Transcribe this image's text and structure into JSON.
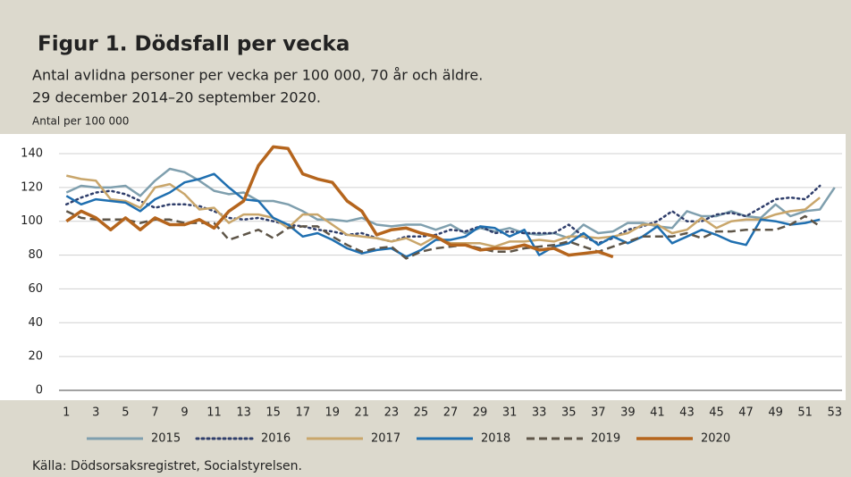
{
  "chart_data": {
    "type": "line",
    "title": "Figur 1. Dödsfall per vecka",
    "subtitle": [
      "Antal avlidna personer per vecka per 100 000, 70 år och äldre.",
      "29 december 2014–20 september 2020."
    ],
    "y_label": "Antal per 100 000",
    "source": "Källa: Dödsorsaksregistret, Socialstyrelsen.",
    "categories": [
      1,
      null,
      3,
      null,
      5,
      null,
      7,
      null,
      9,
      null,
      11,
      null,
      13,
      null,
      15,
      null,
      17,
      null,
      19,
      null,
      21,
      null,
      23,
      null,
      25,
      null,
      27,
      null,
      29,
      null,
      31,
      null,
      33,
      null,
      35,
      null,
      37,
      null,
      39,
      null,
      41,
      null,
      43,
      null,
      45,
      null,
      47,
      null,
      49,
      null,
      51,
      null,
      53
    ],
    "ylim": [
      0,
      140
    ],
    "yticks": [
      0,
      20,
      40,
      60,
      80,
      100,
      120,
      140
    ],
    "grid": true,
    "legend": "bottom",
    "series": [
      {
        "name": "2015",
        "color": "#7f9fae",
        "style": "solid",
        "values": [
          117,
          121,
          120,
          120,
          121,
          115,
          124,
          131,
          129,
          124,
          118,
          116,
          117,
          112,
          112,
          110,
          106,
          101,
          101,
          100,
          102,
          98,
          97,
          98,
          98,
          95,
          98,
          93,
          96,
          94,
          96,
          93,
          92,
          93,
          90,
          98,
          93,
          94,
          99,
          99,
          97,
          96,
          106,
          103,
          103,
          106,
          103,
          102,
          110,
          103,
          106,
          107,
          120
        ]
      },
      {
        "name": "2016",
        "color": "#2f3e6b",
        "style": "dotted",
        "values": [
          110,
          114,
          117,
          118,
          116,
          112,
          108,
          110,
          110,
          109,
          106,
          102,
          101,
          102,
          100,
          98,
          97,
          95,
          94,
          92,
          93,
          90,
          88,
          91,
          91,
          92,
          95,
          94,
          97,
          93,
          94,
          93,
          93,
          93,
          98,
          91,
          87,
          90,
          95,
          97,
          100,
          106,
          100,
          100,
          104,
          105,
          103,
          108,
          113,
          114,
          113,
          121,
          null
        ]
      },
      {
        "name": "2017",
        "color": "#c9a66b",
        "style": "solid",
        "values": [
          127,
          125,
          124,
          113,
          112,
          108,
          120,
          122,
          116,
          107,
          108,
          99,
          104,
          104,
          102,
          96,
          104,
          104,
          98,
          92,
          91,
          90,
          88,
          90,
          86,
          91,
          87,
          87,
          87,
          85,
          88,
          88,
          89,
          88,
          91,
          91,
          90,
          91,
          93,
          98,
          98,
          93,
          95,
          102,
          96,
          100,
          101,
          101,
          104,
          106,
          107,
          114,
          null
        ]
      },
      {
        "name": "2018",
        "color": "#1f6fb0",
        "style": "solid",
        "values": [
          115,
          110,
          113,
          112,
          111,
          106,
          113,
          117,
          123,
          125,
          128,
          120,
          113,
          112,
          102,
          98,
          91,
          93,
          89,
          84,
          81,
          83,
          84,
          79,
          83,
          89,
          89,
          91,
          97,
          96,
          91,
          95,
          80,
          85,
          87,
          93,
          86,
          91,
          87,
          91,
          97,
          87,
          91,
          95,
          92,
          88,
          86,
          101,
          100,
          98,
          99,
          101,
          null
        ]
      },
      {
        "name": "2019",
        "color": "#5e5548",
        "style": "dashed",
        "values": [
          106,
          102,
          101,
          101,
          101,
          99,
          101,
          101,
          99,
          99,
          99,
          89,
          92,
          95,
          90,
          96,
          97,
          97,
          91,
          86,
          82,
          84,
          85,
          78,
          82,
          84,
          85,
          86,
          84,
          82,
          82,
          84,
          85,
          86,
          88,
          85,
          82,
          85,
          88,
          91,
          91,
          91,
          93,
          90,
          94,
          94,
          95,
          95,
          95,
          98,
          103,
          97,
          null
        ]
      },
      {
        "name": "2020",
        "color": "#b5651d",
        "style": "solid",
        "width": 3.5,
        "values": [
          100,
          106,
          102,
          95,
          102,
          95,
          102,
          98,
          98,
          101,
          96,
          106,
          112,
          133,
          144,
          143,
          128,
          125,
          123,
          112,
          106,
          92,
          95,
          96,
          93,
          91,
          86,
          86,
          83,
          84,
          84,
          86,
          83,
          84,
          80,
          81,
          82,
          79,
          null,
          null,
          null,
          null,
          null,
          null,
          null,
          null,
          null,
          null,
          null,
          null,
          null,
          null,
          null
        ]
      }
    ]
  }
}
